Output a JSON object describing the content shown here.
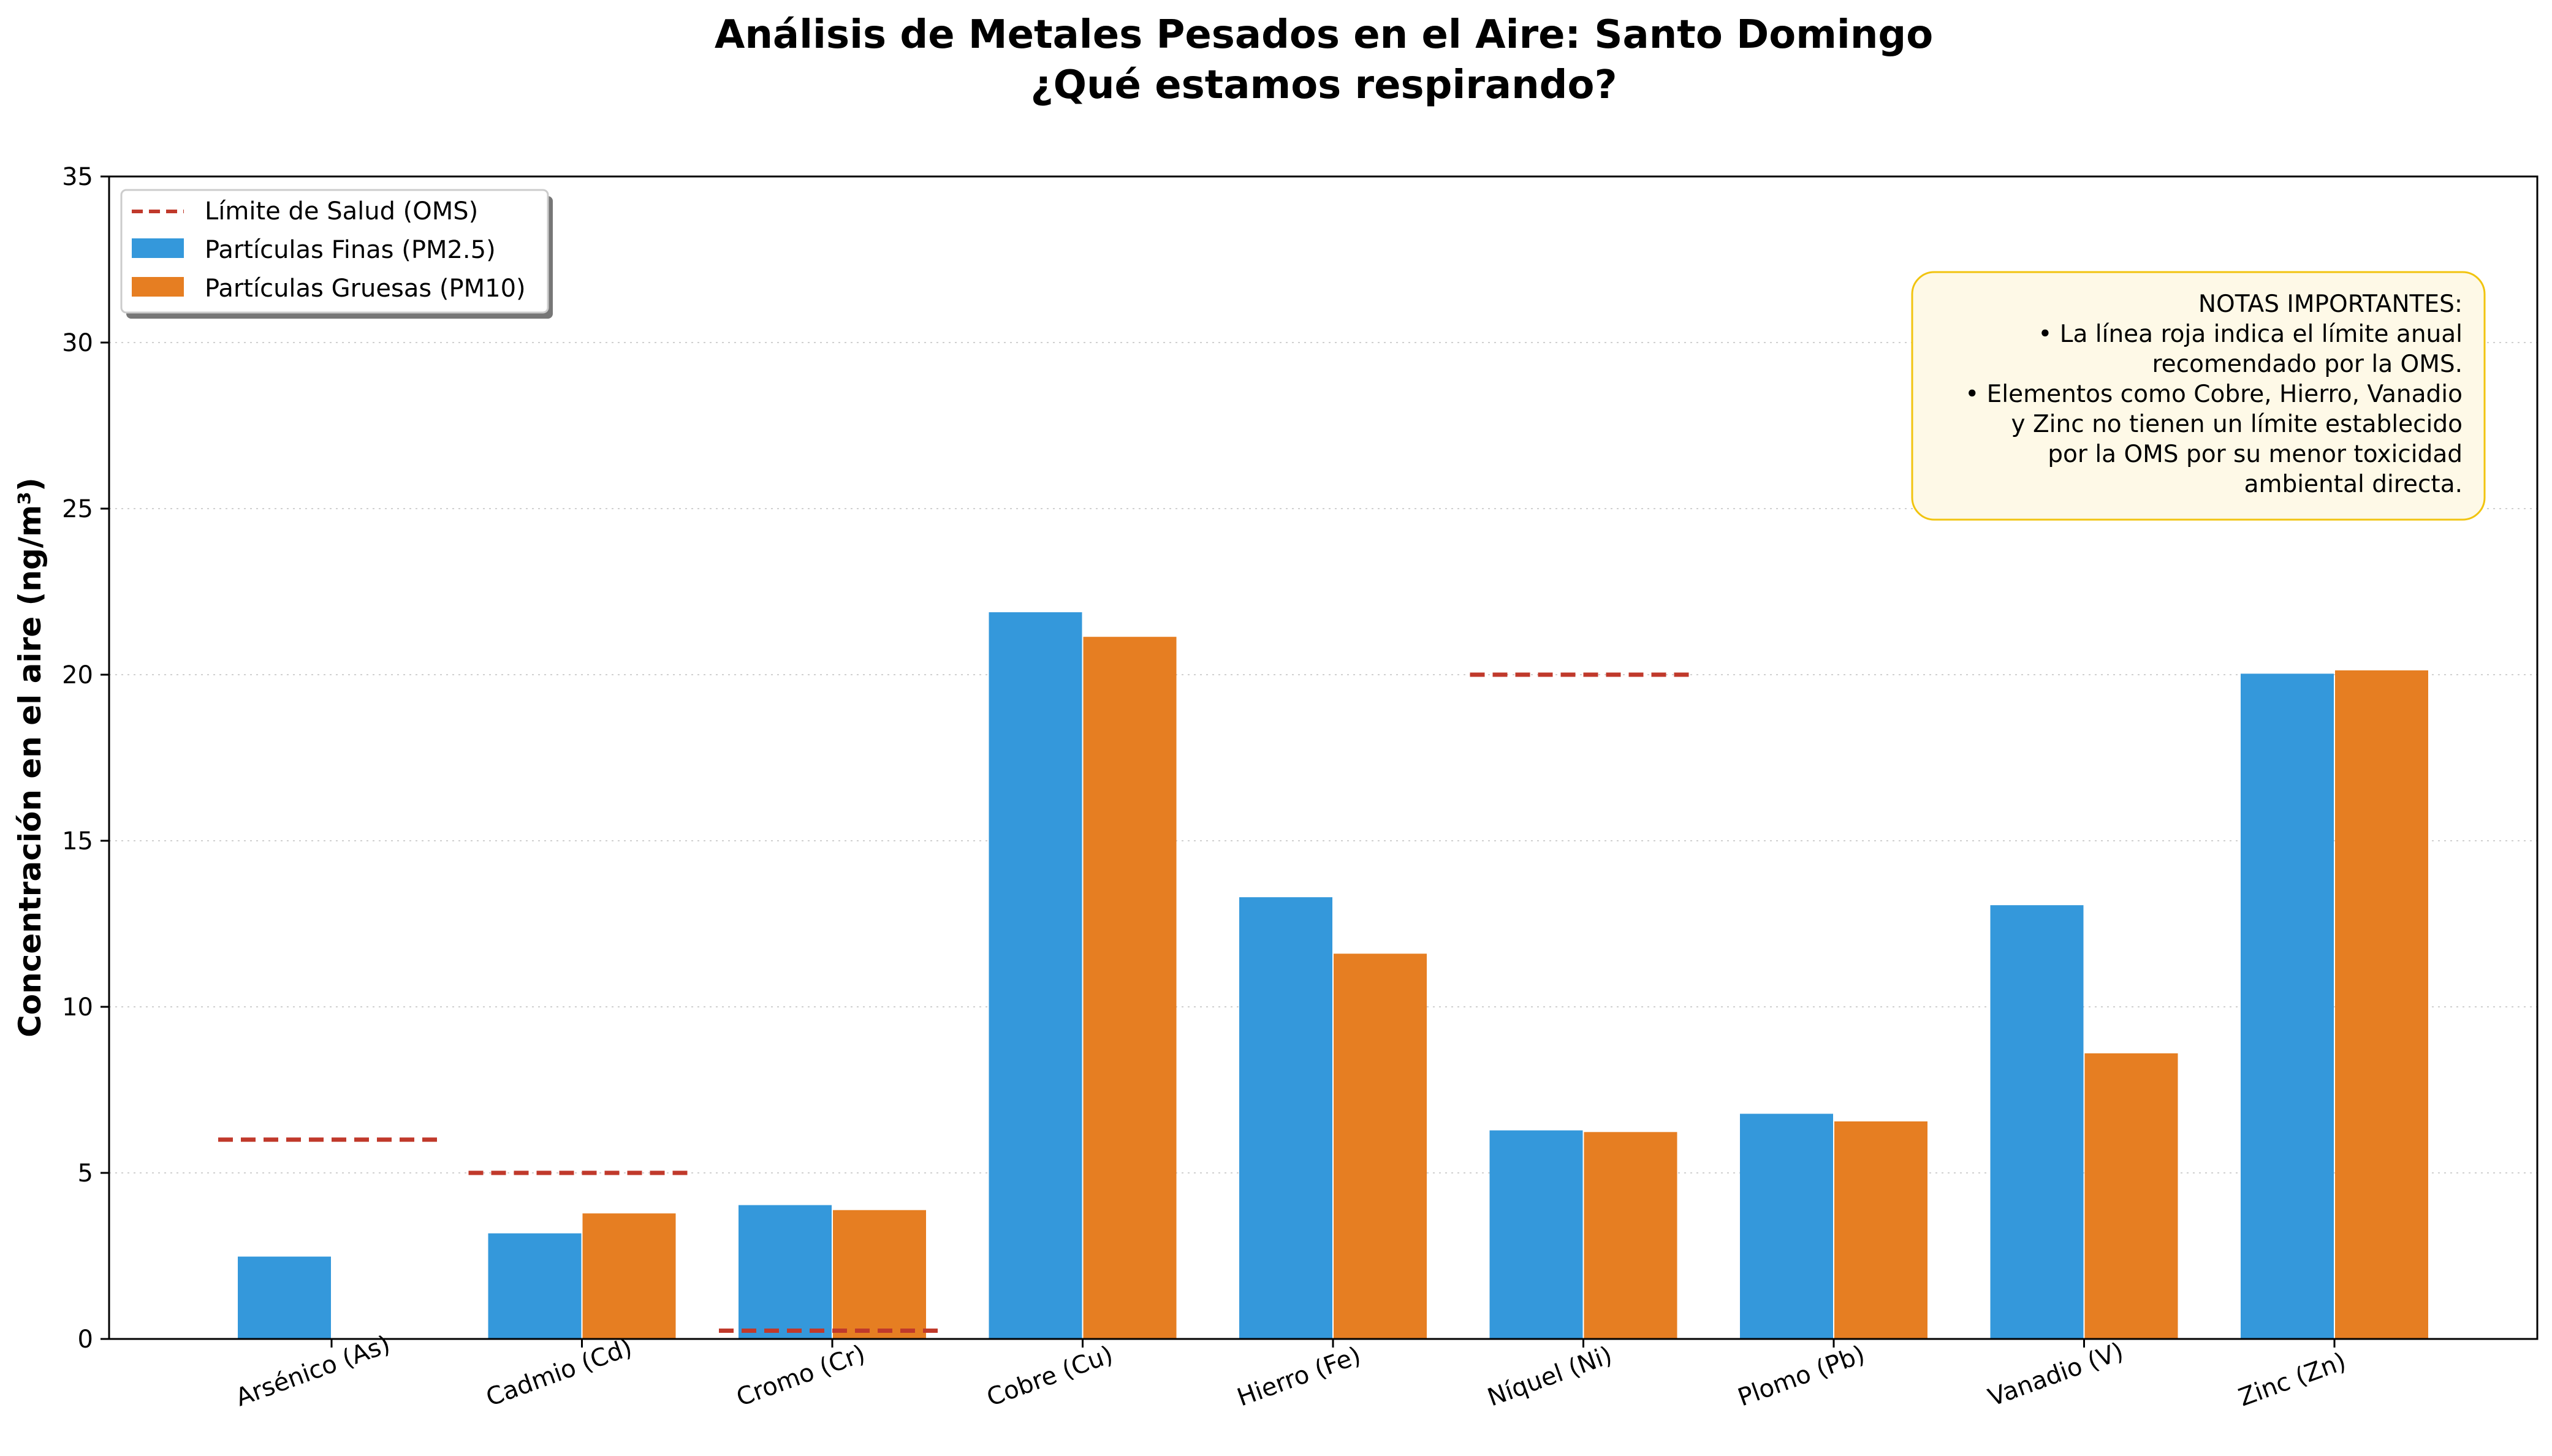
{
  "chart_data": {
    "type": "bar",
    "title": "Análisis de Metales Pesados en el Aire: Santo Domingo",
    "subtitle": "¿Qué estamos respirando?",
    "xlabel": "",
    "ylabel": "Concentración en el aire (ng/m³)",
    "ylim": [
      0,
      35
    ],
    "yticks": [
      0,
      5,
      10,
      15,
      20,
      25,
      30,
      35
    ],
    "grid": "horizontal-dotted",
    "legend_position": "top-left",
    "categories": [
      "Arsénico (As)",
      "Cadmio (Cd)",
      "Cromo (Cr)",
      "Cobre (Cu)",
      "Hierro (Fe)",
      "Níquel (Ni)",
      "Plomo (Pb)",
      "Vanadio (V)",
      "Zinc (Zn)"
    ],
    "series": [
      {
        "name": "Partículas Finas (PM2.5)",
        "color": "#3498db",
        "values": [
          2.48,
          3.18,
          4.03,
          21.88,
          13.3,
          6.28,
          6.78,
          13.06,
          20.03
        ]
      },
      {
        "name": "Partículas Gruesas (PM10)",
        "color": "#e67e22",
        "values": [
          null,
          3.78,
          3.88,
          21.14,
          11.6,
          6.23,
          6.55,
          8.6,
          20.13
        ]
      }
    ],
    "limit_line": {
      "name": "Límite de Salud (OMS)",
      "color": "#c0392b",
      "values": [
        6,
        5,
        0.25,
        null,
        null,
        20,
        null,
        null,
        null
      ]
    },
    "note": {
      "lines": [
        "NOTAS IMPORTANTES:",
        "• La línea roja indica el límite anual",
        "recomendado por la OMS.",
        "• Elementos como Cobre, Hierro, Vanadio",
        "y Zinc no tienen un límite establecido",
        "por la OMS por su menor toxicidad",
        "ambiental directa."
      ],
      "background": "#fef9e7",
      "border": "#f1c40f"
    }
  }
}
